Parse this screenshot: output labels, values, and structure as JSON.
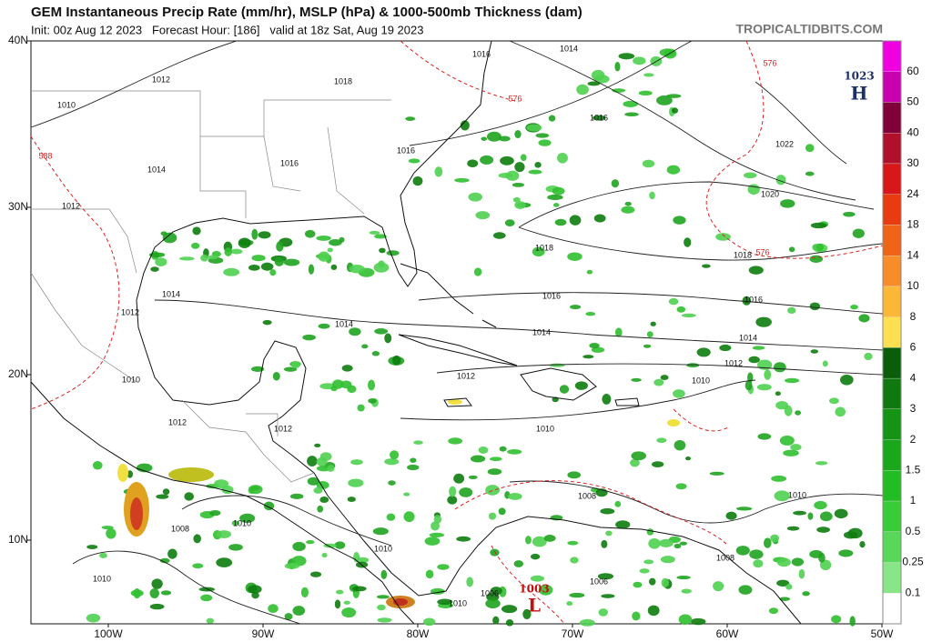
{
  "header": {
    "title": "GEM Instantaneous Precip Rate (mm/hr), MSLP (hPa) & 1000-500mb Thickness (dam)",
    "subtitle": "Init: 00z Aug 12 2023   Forecast Hour: [186]   valid at 18z Sat, Aug 19 2023",
    "source": "TROPICALTIDBITS.COM"
  },
  "map": {
    "lat_labels": [
      "40N",
      "30N",
      "20N",
      "10N"
    ],
    "lon_labels": [
      "100W",
      "90W",
      "80W",
      "70W",
      "60W",
      "50W"
    ],
    "isobar_labels": [
      "1014",
      "1016",
      "1012",
      "1018",
      "1010",
      "1016",
      "1022",
      "1016",
      "1016",
      "1014",
      "1020",
      "1012",
      "1018",
      "1018",
      "1016",
      "1016",
      "1014",
      "1012",
      "1014",
      "1014",
      "1014",
      "1012",
      "1012",
      "1010",
      "1010",
      "1012",
      "1012",
      "1010",
      "1008",
      "1010",
      "1008",
      "1010",
      "1010",
      "1008",
      "1006",
      "1010",
      "1006",
      "1010"
    ],
    "thickness_labels": [
      "588",
      "576",
      "576",
      "576"
    ],
    "high": {
      "pressure": "1023",
      "letter": "H"
    },
    "low": {
      "pressure": "1003",
      "letter": "L"
    }
  },
  "colorbar": {
    "levels": [
      60,
      50,
      40,
      30,
      24,
      18,
      14,
      10,
      8,
      6,
      4,
      3,
      2,
      1.5,
      1,
      0.5,
      0.25,
      0.1
    ]
  }
}
